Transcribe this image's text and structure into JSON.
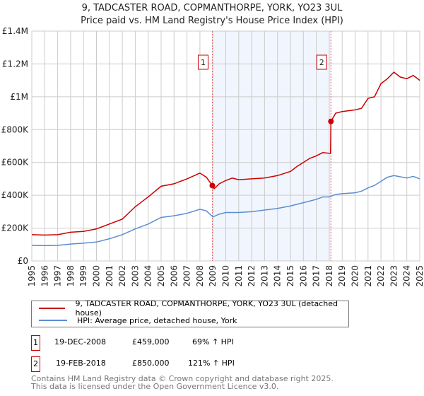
{
  "chart_data": {
    "type": "line",
    "title": "9, TADCASTER ROAD, COPMANTHORPE, YORK, YO23 3UL",
    "subtitle": "Price paid vs. HM Land Registry's House Price Index (HPI)",
    "xlim": [
      1995,
      2025
    ],
    "ylim": [
      0,
      1400000
    ],
    "x_ticks": [
      "1995",
      "1996",
      "1997",
      "1998",
      "1999",
      "2000",
      "2001",
      "2002",
      "2003",
      "2004",
      "2005",
      "2006",
      "2007",
      "2008",
      "2009",
      "2010",
      "2011",
      "2012",
      "2013",
      "2014",
      "2015",
      "2016",
      "2017",
      "2018",
      "2019",
      "2020",
      "2021",
      "2022",
      "2023",
      "2024",
      "2025"
    ],
    "y_ticks": [
      {
        "v": 0,
        "label": "£0"
      },
      {
        "v": 200000,
        "label": "£200K"
      },
      {
        "v": 400000,
        "label": "£400K"
      },
      {
        "v": 600000,
        "label": "£600K"
      },
      {
        "v": 800000,
        "label": "£800K"
      },
      {
        "v": 1000000,
        "label": "£1M"
      },
      {
        "v": 1200000,
        "label": "£1.2M"
      },
      {
        "v": 1400000,
        "label": "£1.4M"
      }
    ],
    "grid": true,
    "shaded_region": [
      2008.96,
      2018.13
    ],
    "series": [
      {
        "name": "9, TADCASTER ROAD, COPMANTHORPE, YORK, YO23 3UL (detached house)",
        "color": "#cc0000",
        "x": [
          1995,
          1996,
          1997,
          1998,
          1999,
          2000,
          2001,
          2002,
          2003,
          2004,
          2005,
          2006,
          2007,
          2008,
          2008.5,
          2008.96,
          2009.1,
          2009.5,
          2010,
          2010.5,
          2011,
          2012,
          2013,
          2014,
          2015,
          2015.5,
          2016,
          2016.5,
          2017,
          2017.5,
          2018.1,
          2018.13,
          2018.5,
          2019,
          2020,
          2020.5,
          2021,
          2021.5,
          2022,
          2022.5,
          2023,
          2023.5,
          2024,
          2024.5,
          2025
        ],
        "y": [
          160000,
          158000,
          160000,
          175000,
          180000,
          195000,
          225000,
          255000,
          330000,
          390000,
          455000,
          470000,
          500000,
          535000,
          510000,
          459000,
          440000,
          470000,
          490000,
          505000,
          495000,
          500000,
          505000,
          520000,
          545000,
          575000,
          600000,
          625000,
          640000,
          660000,
          655000,
          850000,
          900000,
          910000,
          920000,
          930000,
          990000,
          1000000,
          1080000,
          1110000,
          1150000,
          1120000,
          1110000,
          1130000,
          1100000
        ]
      },
      {
        "name": "HPI: Average price, detached house, York",
        "color": "#5b8dd1",
        "x": [
          1995,
          1996,
          1997,
          1998,
          1999,
          2000,
          2001,
          2002,
          2003,
          2004,
          2005,
          2006,
          2007,
          2008,
          2008.5,
          2009,
          2009.5,
          2010,
          2011,
          2012,
          2013,
          2014,
          2015,
          2016,
          2017,
          2017.5,
          2018,
          2018.5,
          2019,
          2020,
          2020.5,
          2021,
          2021.5,
          2022,
          2022.5,
          2023,
          2024,
          2024.5,
          2025
        ],
        "y": [
          95000,
          93000,
          95000,
          103000,
          108000,
          115000,
          135000,
          160000,
          195000,
          225000,
          265000,
          275000,
          290000,
          315000,
          305000,
          268000,
          285000,
          295000,
          295000,
          300000,
          310000,
          320000,
          335000,
          355000,
          375000,
          390000,
          390000,
          405000,
          410000,
          415000,
          425000,
          445000,
          460000,
          485000,
          510000,
          520000,
          505000,
          515000,
          500000
        ]
      }
    ],
    "markers": [
      {
        "label": "1",
        "x": 2008.96,
        "y": 459000
      },
      {
        "label": "2",
        "x": 2018.13,
        "y": 850000
      }
    ]
  },
  "transactions": [
    {
      "num": "1",
      "date": "19-DEC-2008",
      "price": "£459,000",
      "hpi": "69% ↑ HPI"
    },
    {
      "num": "2",
      "date": "19-FEB-2018",
      "price": "£850,000",
      "hpi": "121% ↑ HPI"
    }
  ],
  "footer": {
    "line1": "Contains HM Land Registry data © Crown copyright and database right 2025.",
    "line2": "This data is licensed under the Open Government Licence v3.0."
  }
}
